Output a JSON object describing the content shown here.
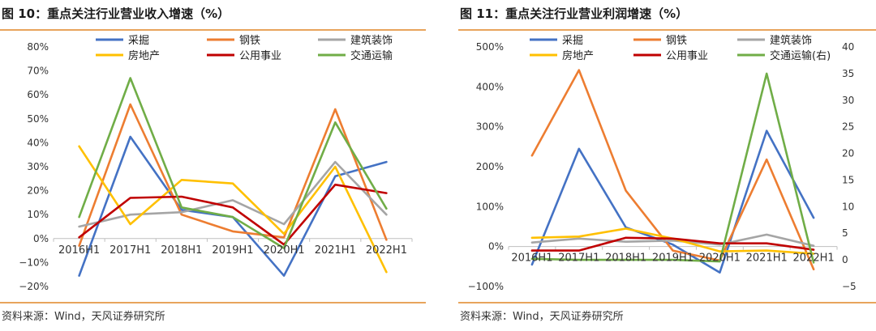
{
  "charts": [
    {
      "title": "图 10：重点关注行业营业收入增速（%）",
      "source": "资料来源：Wind，天风证券研究所"
    },
    {
      "title": "图 11：重点关注行业营业利润增速（%）",
      "source": "资料来源：Wind，天风证券研究所"
    }
  ],
  "chart_data": [
    {
      "type": "line",
      "title": "图 10：重点关注行业营业收入增速（%）",
      "categories": [
        "2016H1",
        "2017H1",
        "2018H1",
        "2019H1",
        "2020H1",
        "2021H1",
        "2022H1"
      ],
      "ylim": [
        -0.2,
        0.8
      ],
      "yticks": [
        "−20%",
        "−10%",
        "0%",
        "10%",
        "20%",
        "30%",
        "40%",
        "50%",
        "60%",
        "70%",
        "80%"
      ],
      "series": [
        {
          "name": "采掘",
          "color": "#4472c4",
          "values": [
            -0.155,
            0.425,
            0.12,
            0.09,
            -0.155,
            0.26,
            0.32
          ]
        },
        {
          "name": "钢铁",
          "color": "#ed7d31",
          "values": [
            -0.03,
            0.56,
            0.1,
            0.03,
            0.005,
            0.54,
            -0.005
          ]
        },
        {
          "name": "建筑装饰",
          "color": "#a5a5a5",
          "values": [
            0.05,
            0.1,
            0.11,
            0.16,
            0.06,
            0.32,
            0.1
          ]
        },
        {
          "name": "房地产",
          "color": "#ffc000",
          "values": [
            0.385,
            0.06,
            0.245,
            0.23,
            0.02,
            0.3,
            -0.14
          ]
        },
        {
          "name": "公用事业",
          "color": "#c00000",
          "values": [
            0.005,
            0.17,
            0.175,
            0.13,
            -0.025,
            0.225,
            0.19
          ]
        },
        {
          "name": "交通运输",
          "color": "#70ad47",
          "values": [
            0.09,
            0.67,
            0.13,
            0.09,
            -0.04,
            0.485,
            0.125
          ]
        }
      ],
      "legend_position": "top",
      "grid": false
    },
    {
      "type": "line",
      "title": "图 11：重点关注行业营业利润增速（%）",
      "categories": [
        "2016H1",
        "2017H1",
        "2018H1",
        "2019H1",
        "2020H1",
        "2021H1",
        "2022H1"
      ],
      "ylim": [
        -1.0,
        5.0
      ],
      "y2lim": [
        -5,
        40
      ],
      "yticks": [
        "−100%",
        "0%",
        "100%",
        "200%",
        "300%",
        "400%",
        "500%"
      ],
      "y2ticks": [
        "−5",
        "0",
        "5",
        "10",
        "15",
        "20",
        "25",
        "30",
        "35",
        "40"
      ],
      "series": [
        {
          "name": "采掘",
          "color": "#4472c4",
          "axis": "left",
          "values": [
            -0.45,
            2.45,
            0.48,
            0.05,
            -0.65,
            2.9,
            0.72
          ]
        },
        {
          "name": "钢铁",
          "color": "#ed7d31",
          "axis": "left",
          "values": [
            2.28,
            4.42,
            1.4,
            -0.1,
            -0.35,
            2.18,
            -0.57
          ]
        },
        {
          "name": "建筑装饰",
          "color": "#a5a5a5",
          "axis": "left",
          "values": [
            0.1,
            0.2,
            0.12,
            0.15,
            0.05,
            0.3,
            0.02
          ]
        },
        {
          "name": "房地产",
          "color": "#ffc000",
          "axis": "left",
          "values": [
            0.22,
            0.25,
            0.45,
            0.2,
            -0.12,
            -0.1,
            -0.18
          ]
        },
        {
          "name": "公用事业",
          "color": "#c00000",
          "axis": "left",
          "values": [
            -0.1,
            -0.1,
            0.22,
            0.2,
            0.08,
            0.08,
            -0.08
          ]
        },
        {
          "name": "交通运输(右)",
          "color": "#70ad47",
          "axis": "right",
          "values": [
            0.2,
            0.0,
            0.0,
            0.0,
            -0.3,
            35.0,
            -0.5
          ]
        }
      ],
      "legend_position": "top",
      "grid": false
    }
  ]
}
